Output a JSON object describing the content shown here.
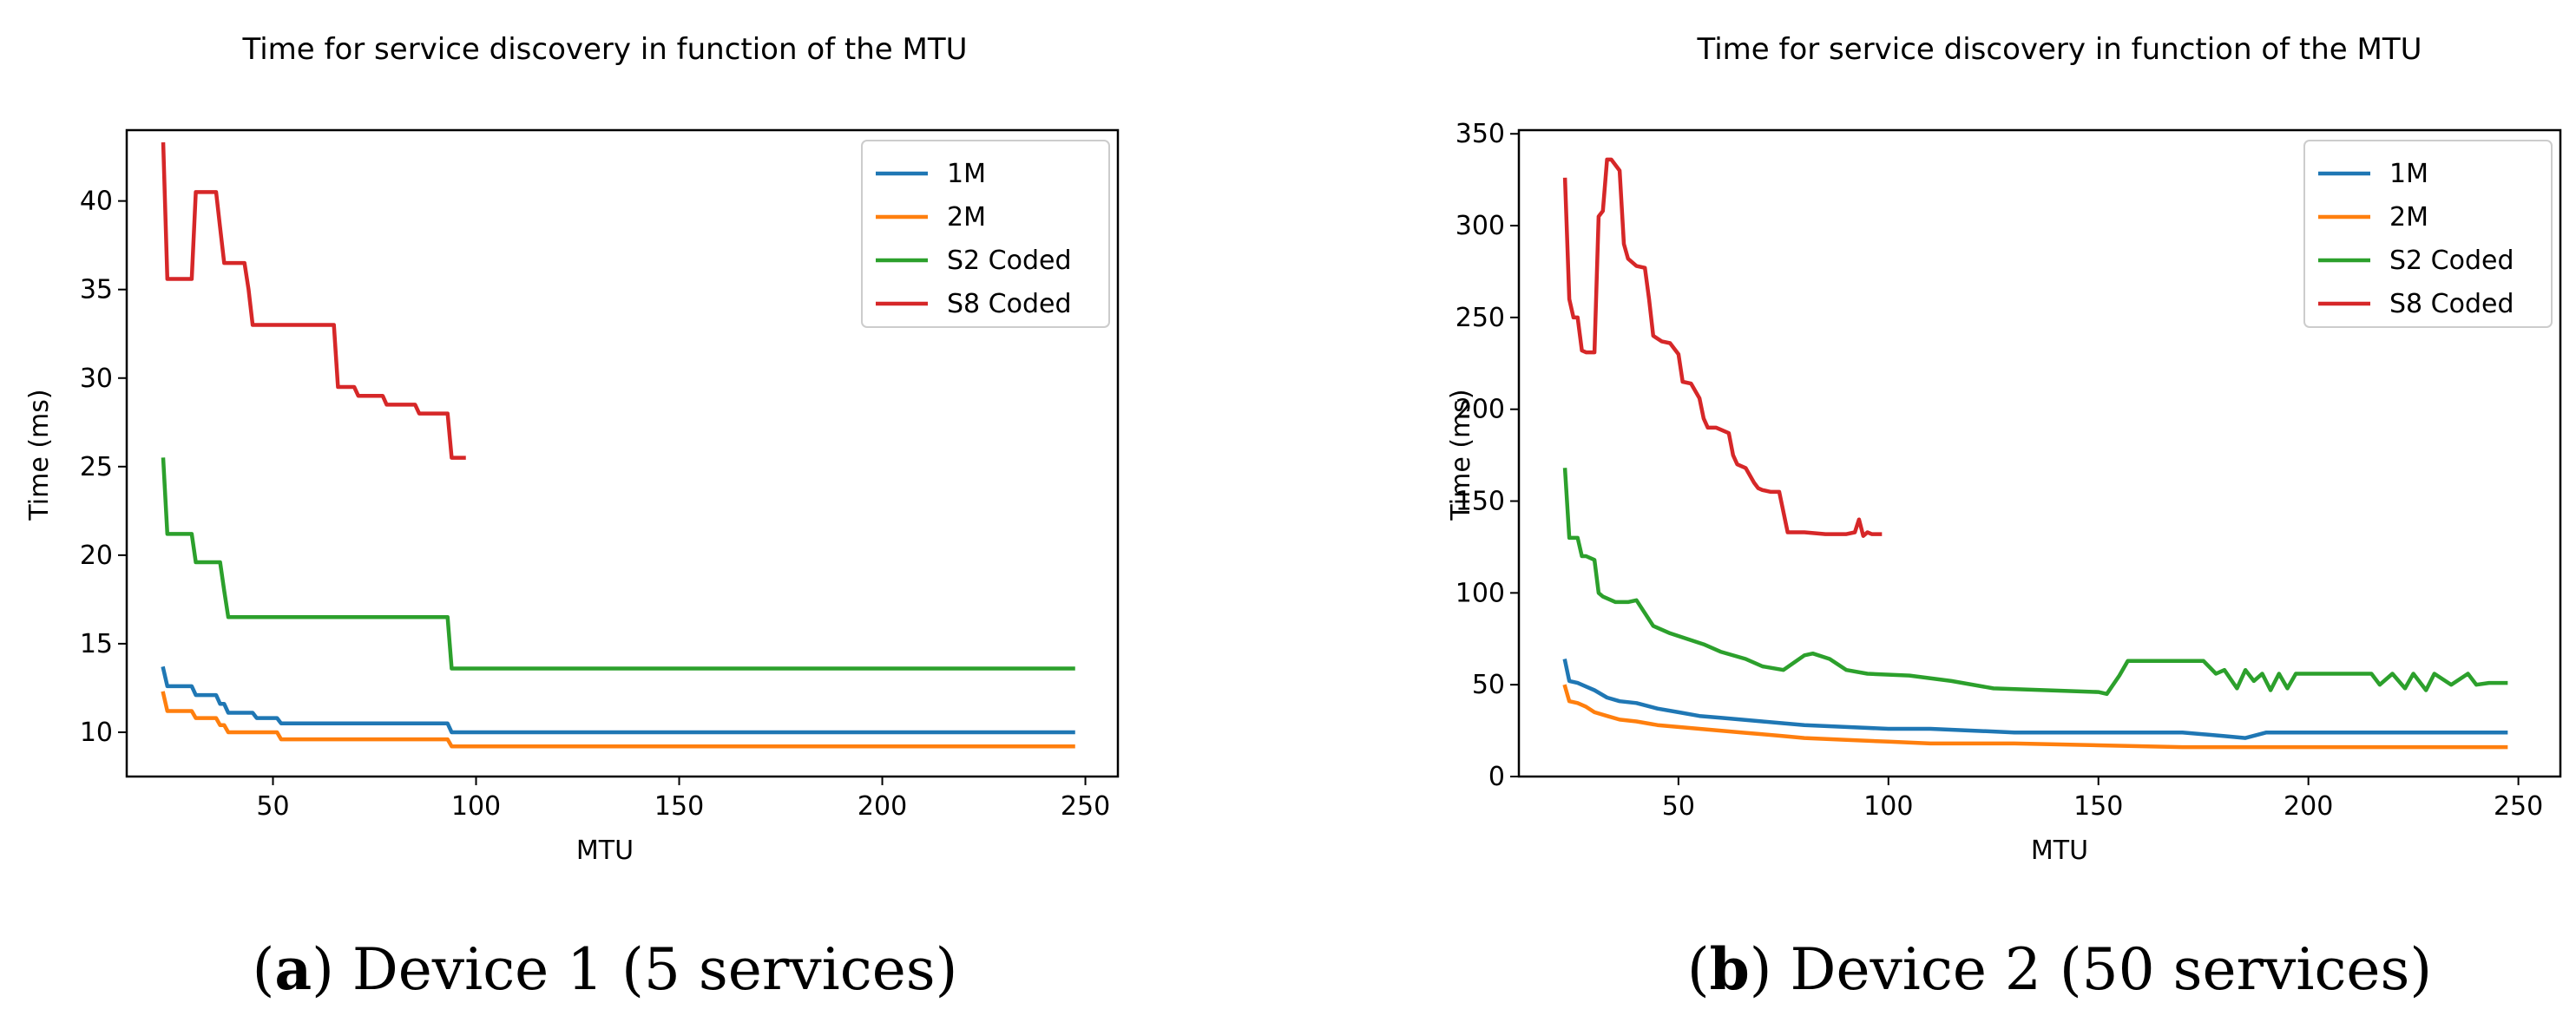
{
  "chart_data": [
    {
      "type": "line",
      "title": "Time for service discovery in function of the MTU",
      "xlabel": "MTU",
      "ylabel": "Time (ms)",
      "xlim": [
        14,
        258
      ],
      "ylim": [
        7.5,
        44
      ],
      "xticks": [
        50,
        100,
        150,
        200,
        250
      ],
      "yticks": [
        10,
        15,
        20,
        25,
        30,
        35,
        40
      ],
      "legend": "top-right",
      "caption_letter": "a",
      "caption_text": " Device 1 (5 services)",
      "series": [
        {
          "name": "1M",
          "color": "#1f77b4",
          "x": [
            23,
            24,
            30,
            31,
            36,
            37,
            38,
            39,
            45,
            46,
            51,
            52,
            93,
            94,
            247
          ],
          "y": [
            13.6,
            12.6,
            12.6,
            12.1,
            12.1,
            11.6,
            11.6,
            11.1,
            11.1,
            10.8,
            10.8,
            10.5,
            10.5,
            10.0,
            10.0
          ]
        },
        {
          "name": "2M",
          "color": "#ff7f0e",
          "x": [
            23,
            24,
            30,
            31,
            36,
            37,
            38,
            39,
            51,
            52,
            93,
            94,
            247
          ],
          "y": [
            12.2,
            11.2,
            11.2,
            10.8,
            10.8,
            10.4,
            10.4,
            10.0,
            10.0,
            9.6,
            9.6,
            9.2,
            9.2
          ]
        },
        {
          "name": "S2 Coded",
          "color": "#2ca02c",
          "x": [
            23,
            24,
            30,
            31,
            36,
            37,
            38,
            39,
            93,
            94,
            247
          ],
          "y": [
            25.4,
            21.2,
            21.2,
            19.6,
            19.6,
            19.6,
            18.0,
            16.5,
            16.5,
            13.6,
            13.6
          ]
        },
        {
          "name": "S8 Coded",
          "color": "#d62728",
          "x": [
            23,
            24,
            30,
            31,
            36,
            37,
            38,
            39,
            43,
            44,
            45,
            65,
            66,
            70,
            71,
            77,
            78,
            85,
            86,
            93,
            94,
            97
          ],
          "y": [
            43.2,
            35.6,
            35.6,
            40.5,
            40.5,
            38.5,
            36.5,
            36.5,
            36.5,
            35.0,
            33.0,
            33.0,
            29.5,
            29.5,
            29.0,
            29.0,
            28.5,
            28.5,
            28.0,
            28.0,
            25.5,
            25.5
          ]
        }
      ]
    },
    {
      "type": "line",
      "title": "Time for service discovery in function of the MTU",
      "xlabel": "MTU",
      "ylabel": "Time (ms)",
      "xlim": [
        12,
        260
      ],
      "ylim": [
        0,
        352
      ],
      "xticks": [
        50,
        100,
        150,
        200,
        250
      ],
      "yticks": [
        0,
        50,
        100,
        150,
        200,
        250,
        300,
        350
      ],
      "legend": "top-right",
      "caption_letter": "b",
      "caption_text": " Device 2 (50 services)",
      "series": [
        {
          "name": "1M",
          "color": "#1f77b4",
          "x": [
            23,
            24,
            26,
            28,
            30,
            33,
            36,
            40,
            45,
            50,
            55,
            60,
            65,
            70,
            75,
            80,
            90,
            100,
            110,
            120,
            130,
            150,
            170,
            180,
            185,
            190,
            247
          ],
          "y": [
            63,
            52,
            51,
            49,
            47,
            43,
            41,
            40,
            37,
            35,
            33,
            32,
            31,
            30,
            29,
            28,
            27,
            26,
            26,
            25,
            24,
            24,
            24,
            22,
            21,
            24,
            24
          ]
        },
        {
          "name": "2M",
          "color": "#ff7f0e",
          "x": [
            23,
            24,
            26,
            28,
            30,
            33,
            36,
            40,
            45,
            50,
            55,
            60,
            65,
            70,
            75,
            80,
            90,
            100,
            110,
            130,
            150,
            170,
            200,
            247
          ],
          "y": [
            49,
            41,
            40,
            38,
            35,
            33,
            31,
            30,
            28,
            27,
            26,
            25,
            24,
            23,
            22,
            21,
            20,
            19,
            18,
            18,
            17,
            16,
            16,
            16
          ]
        },
        {
          "name": "S2 Coded",
          "color": "#2ca02c",
          "x": [
            23,
            24,
            26,
            27,
            28,
            30,
            31,
            32,
            35,
            38,
            40,
            44,
            48,
            52,
            56,
            60,
            66,
            70,
            75,
            80,
            82,
            86,
            90,
            95,
            105,
            115,
            125,
            150,
            152,
            155,
            157,
            175,
            178,
            180,
            183,
            185,
            187,
            189,
            191,
            193,
            195,
            197,
            215,
            217,
            220,
            223,
            225,
            228,
            230,
            234,
            238,
            240,
            243,
            247
          ],
          "y": [
            167,
            130,
            130,
            120,
            120,
            118,
            100,
            98,
            95,
            95,
            96,
            82,
            78,
            75,
            72,
            68,
            64,
            60,
            58,
            66,
            67,
            64,
            58,
            56,
            55,
            52,
            48,
            46,
            45,
            55,
            63,
            63,
            56,
            58,
            48,
            58,
            52,
            56,
            47,
            56,
            48,
            56,
            56,
            50,
            56,
            48,
            56,
            47,
            56,
            50,
            56,
            50,
            51,
            51
          ]
        },
        {
          "name": "S8 Coded",
          "color": "#d62728",
          "x": [
            23,
            24,
            25,
            26,
            27,
            28,
            30,
            31,
            32,
            33,
            34,
            35,
            36,
            37,
            38,
            40,
            42,
            43,
            44,
            46,
            48,
            50,
            51,
            53,
            55,
            56,
            57,
            59,
            62,
            63,
            64,
            66,
            68,
            69,
            70,
            72,
            74,
            76,
            78,
            80,
            85,
            90,
            92,
            93,
            94,
            95,
            96,
            98
          ],
          "y": [
            325,
            260,
            250,
            250,
            232,
            231,
            231,
            305,
            308,
            336,
            336,
            333,
            330,
            290,
            282,
            278,
            277,
            260,
            240,
            237,
            236,
            230,
            215,
            214,
            206,
            195,
            190,
            190,
            187,
            175,
            170,
            168,
            160,
            157,
            156,
            155,
            155,
            133,
            133,
            133,
            132,
            132,
            133,
            140,
            131,
            133,
            132,
            132
          ]
        }
      ]
    }
  ]
}
